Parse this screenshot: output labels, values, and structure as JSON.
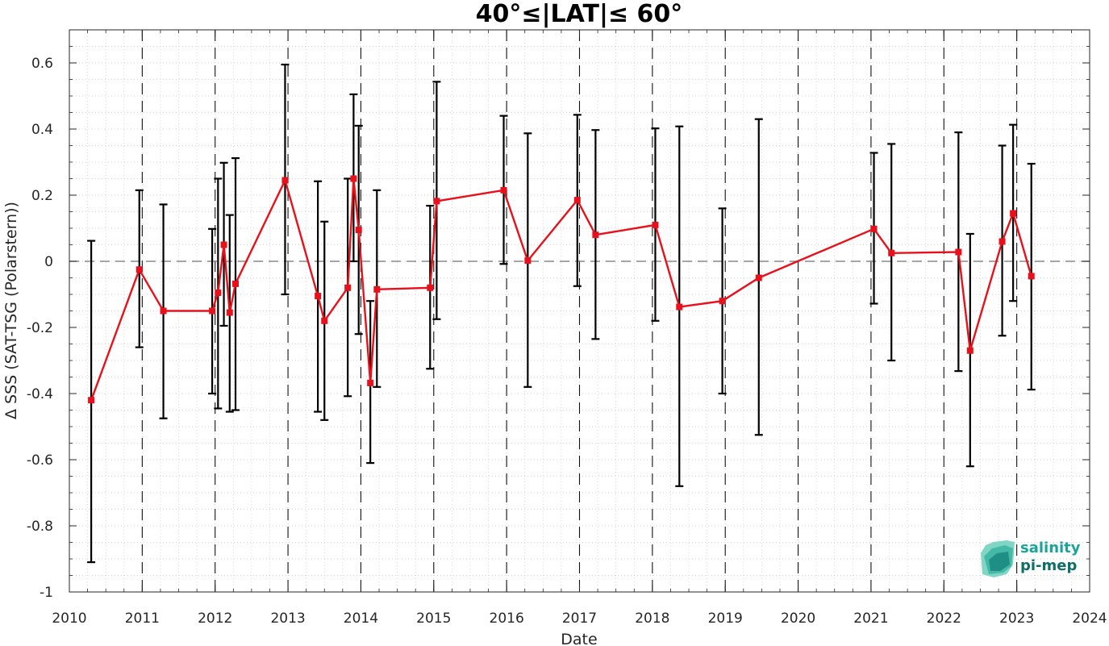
{
  "chart_data": {
    "type": "line",
    "title": "40°≤|LAT|≤ 60°",
    "xlabel": "Date",
    "ylabel": "Δ SSS (SAT-TSG (Polarstern))",
    "xlim": [
      2010,
      2024
    ],
    "ylim": [
      -1,
      0.7
    ],
    "xticks": [
      "2010",
      "2011",
      "2012",
      "2013",
      "2014",
      "2015",
      "2016",
      "2017",
      "2018",
      "2019",
      "2020",
      "2021",
      "2022",
      "2023",
      "2024"
    ],
    "yticks": [
      "-1",
      "-0.8",
      "-0.6",
      "-0.4",
      "-0.2",
      "0",
      "0.2",
      "0.4",
      "0.6"
    ],
    "ytick_values": [
      -1,
      -0.8,
      -0.6,
      -0.4,
      -0.2,
      0,
      0.2,
      0.4,
      0.6
    ],
    "year_separators": [
      2011,
      2012,
      2013,
      2014,
      2015,
      2016,
      2017,
      2018,
      2019,
      2020,
      2021,
      2022,
      2023
    ],
    "grid": "dotted minor grid",
    "series": [
      {
        "color": "#e8101a",
        "marker": "square",
        "x": [
          2010.3,
          2010.96,
          2011.29,
          2011.96,
          2012.04,
          2012.12,
          2012.2,
          2012.28,
          2012.96,
          2013.41,
          2013.5,
          2013.82,
          2013.9,
          2013.97,
          2014.13,
          2014.22,
          2014.95,
          2015.04,
          2015.96,
          2016.29,
          2016.97,
          2017.22,
          2018.04,
          2018.37,
          2018.96,
          2019.46,
          2021.04,
          2021.28,
          2022.2,
          2022.36,
          2022.8,
          2022.95,
          2023.2
        ],
        "y": [
          -0.42,
          -0.025,
          -0.15,
          -0.15,
          -0.095,
          0.05,
          -0.155,
          -0.068,
          0.245,
          -0.105,
          -0.18,
          -0.08,
          0.25,
          0.095,
          -0.368,
          -0.085,
          -0.08,
          0.182,
          0.215,
          0.002,
          0.185,
          0.08,
          0.11,
          -0.138,
          -0.12,
          -0.05,
          0.098,
          0.025,
          0.028,
          -0.27,
          0.06,
          0.145,
          -0.045
        ],
        "err_low": [
          -0.91,
          -0.26,
          -0.475,
          -0.4,
          -0.445,
          -0.195,
          -0.455,
          -0.45,
          -0.1,
          -0.455,
          -0.48,
          -0.408,
          0.0,
          -0.22,
          -0.61,
          -0.38,
          -0.325,
          -0.175,
          -0.008,
          -0.38,
          -0.075,
          -0.235,
          -0.18,
          -0.68,
          -0.4,
          -0.525,
          -0.128,
          -0.3,
          -0.332,
          -0.62,
          -0.225,
          -0.12,
          -0.388
        ],
        "err_high": [
          0.062,
          0.215,
          0.172,
          0.098,
          0.25,
          0.298,
          0.14,
          0.312,
          0.595,
          0.242,
          0.12,
          0.25,
          0.505,
          0.41,
          -0.12,
          0.215,
          0.168,
          0.543,
          0.44,
          0.387,
          0.443,
          0.397,
          0.402,
          0.408,
          0.16,
          0.43,
          0.328,
          0.355,
          0.39,
          0.083,
          0.35,
          0.413,
          0.295
        ]
      }
    ],
    "reference_line": 0
  },
  "logo": {
    "line1": "salinity",
    "line2": "pi-mep",
    "color1": "#1aa59a",
    "color2": "#0e6f6a"
  }
}
